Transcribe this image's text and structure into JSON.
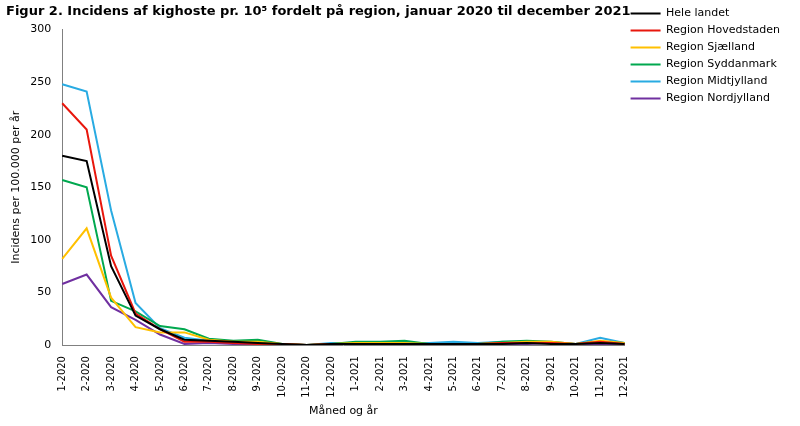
{
  "chart_data": {
    "type": "line",
    "title": "Figur 2. Incidens af kighoste pr. 10⁵ fordelt på region, januar 2020 til december 2021",
    "x_label": "Måned og år",
    "y_label": "Incidens per 100.000 per år",
    "categories": [
      "1-2020",
      "2-2020",
      "3-2020",
      "4-2020",
      "5-2020",
      "6-2020",
      "7-2020",
      "8-2020",
      "9-2020",
      "10-2020",
      "11-2020",
      "12-2020",
      "1-2021",
      "2-2021",
      "3-2021",
      "4-2021",
      "5-2021",
      "6-2021",
      "7-2021",
      "8-2021",
      "9-2021",
      "10-2021",
      "11-2021",
      "12-2021"
    ],
    "series": [
      {
        "name": "Hele landet",
        "color": "#000000",
        "values": [
          180,
          175,
          75,
          28,
          15,
          5,
          4,
          3,
          2,
          1,
          0,
          1,
          1,
          1,
          1,
          1,
          1,
          1,
          1,
          2,
          1,
          1,
          2,
          1
        ]
      },
      {
        "name": "Region Hovedstaden",
        "color": "#e8170d",
        "values": [
          230,
          205,
          85,
          30,
          15,
          3,
          3,
          2,
          1,
          1,
          0,
          1,
          1,
          1,
          1,
          1,
          1,
          1,
          2,
          2,
          2,
          1,
          3,
          1
        ]
      },
      {
        "name": "Region Sjælland",
        "color": "#ffc000",
        "values": [
          82,
          111,
          45,
          17,
          12,
          12,
          5,
          3,
          3,
          1,
          0,
          1,
          2,
          2,
          2,
          1,
          1,
          1,
          2,
          3,
          3,
          1,
          4,
          2
        ]
      },
      {
        "name": "Region Syddanmark",
        "color": "#00a84f",
        "values": [
          157,
          150,
          42,
          32,
          18,
          15,
          6,
          4,
          5,
          1,
          0,
          1,
          3,
          3,
          4,
          1,
          1,
          1,
          3,
          4,
          3,
          1,
          3,
          2
        ]
      },
      {
        "name": "Region Midtjylland",
        "color": "#29abe2",
        "values": [
          248,
          241,
          128,
          40,
          16,
          7,
          4,
          3,
          2,
          1,
          0,
          2,
          2,
          2,
          2,
          2,
          3,
          2,
          3,
          3,
          2,
          1,
          7,
          2
        ]
      },
      {
        "name": "Region Nordjylland",
        "color": "#7030a0",
        "values": [
          58,
          67,
          36,
          24,
          10,
          1,
          2,
          1,
          0,
          1,
          0,
          0,
          1,
          1,
          1,
          1,
          2,
          1,
          1,
          1,
          2,
          1,
          1,
          1
        ]
      }
    ],
    "ylim": [
      0,
      300
    ],
    "yticks": [
      0,
      50,
      100,
      150,
      200,
      250,
      300
    ],
    "grid": false,
    "legend": "upper right"
  }
}
